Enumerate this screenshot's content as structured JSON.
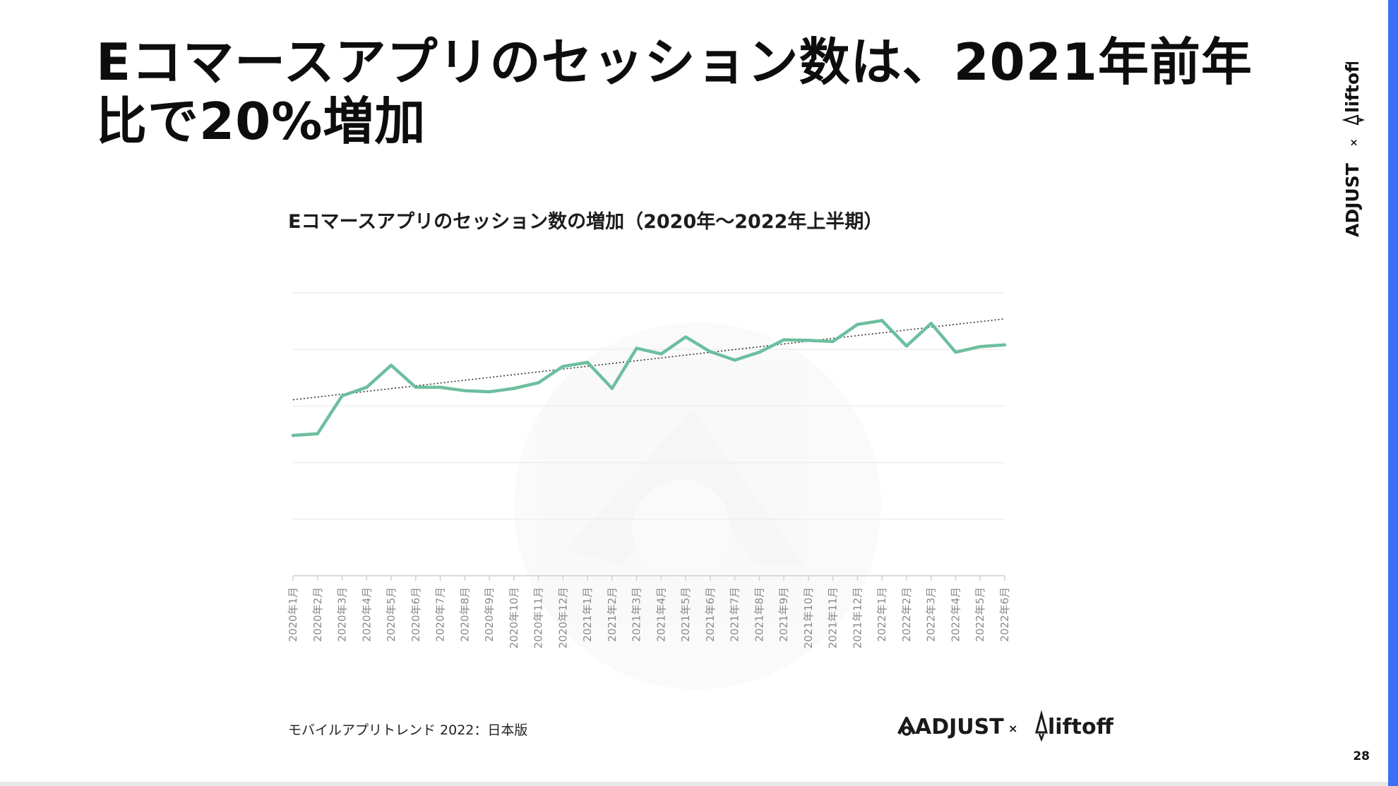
{
  "slide": {
    "title": "Eコマースアプリのセッション数は、2021年前年比で20%増加",
    "footnote": "モバイルアプリトレンド 2022：日本版",
    "page_number": "28"
  },
  "brand": {
    "adjust": "ADJUST",
    "separator": "×",
    "liftoff": "liftoff"
  },
  "colors": {
    "series_line": "#6cbf9e",
    "trend_line": "#333333",
    "gridline": "#eeeeee",
    "axis": "#d0d0d0",
    "accent_edge": "#3b6ff5"
  },
  "chart_data": {
    "type": "line",
    "title": "Eコマースアプリのセッション数の増加（2020年〜2022年上半期）",
    "categories": [
      "2020年1月",
      "2020年2月",
      "2020年3月",
      "2020年4月",
      "2020年5月",
      "2020年6月",
      "2020年7月",
      "2020年8月",
      "2020年9月",
      "2020年10月",
      "2020年11月",
      "2020年12月",
      "2021年1月",
      "2021年2月",
      "2021年3月",
      "2021年4月",
      "2021年5月",
      "2021年6月",
      "2021年7月",
      "2021年8月",
      "2021年9月",
      "2021年10月",
      "2021年11月",
      "2021年12月",
      "2022年1月",
      "2022年2月",
      "2022年3月",
      "2022年4月",
      "2022年5月",
      "2022年6月"
    ],
    "series": [
      {
        "values": [
          2.48,
          2.51,
          3.18,
          3.33,
          3.72,
          3.33,
          3.33,
          3.27,
          3.25,
          3.31,
          3.41,
          3.7,
          3.77,
          3.31,
          4.02,
          3.92,
          4.22,
          3.96,
          3.81,
          3.95,
          4.17,
          4.16,
          4.14,
          4.44,
          4.51,
          4.06,
          4.46,
          3.95,
          4.05,
          4.08
        ]
      }
    ],
    "trendline": {
      "style": "dotted",
      "start": 3.11,
      "end": 4.54
    },
    "ylim": [
      0,
      5
    ],
    "gridlines": [
      1,
      2,
      3,
      4,
      5
    ],
    "y_tick_labels_shown": false,
    "grid": true,
    "xlabel": "",
    "ylabel": "",
    "x_tick_rotation": "vertical"
  }
}
